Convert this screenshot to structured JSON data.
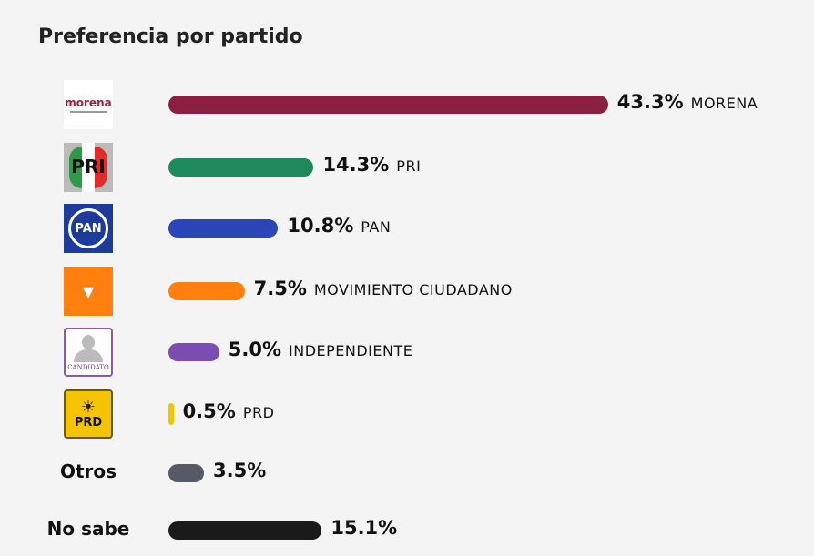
{
  "chart_data": {
    "type": "bar",
    "orientation": "horizontal",
    "title": "Preferencia por partido",
    "unit": "%",
    "categories": [
      "MORENA",
      "PRI",
      "PAN",
      "MOVIMIENTO CIUDADANO",
      "INDEPENDIENTE",
      "PRD",
      "Otros",
      "No sabe"
    ],
    "values": [
      43.3,
      14.3,
      10.8,
      7.5,
      5.0,
      0.5,
      3.5,
      15.1
    ],
    "value_labels": [
      "43.3%",
      "14.3%",
      "10.8%",
      "7.5%",
      "5.0%",
      "0.5%",
      "3.5%",
      "15.1%"
    ],
    "colors": [
      "#8b1f3f",
      "#1e8a5c",
      "#2a46b8",
      "#ff7f0f",
      "#7b4db3",
      "#f5c400",
      "#565a66",
      "#1a1a1a"
    ],
    "logos": [
      "morena-logo",
      "pri-logo",
      "pan-logo",
      "movimiento-ciudadano-logo",
      "candidato-independiente-logo",
      "prd-logo",
      null,
      null
    ],
    "logo_text": {
      "morena": "morena",
      "pri": "PRI",
      "pan": "PAN",
      "independiente": "CANDIDATO",
      "prd": "PRD"
    }
  }
}
